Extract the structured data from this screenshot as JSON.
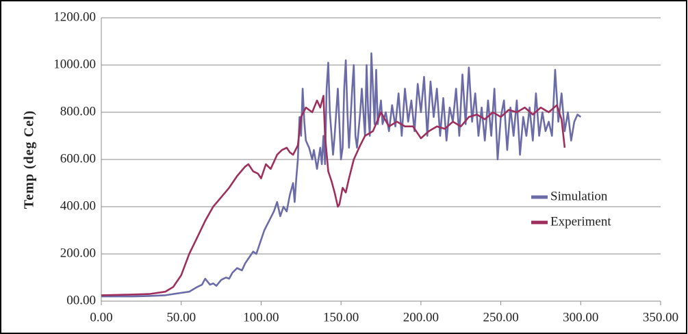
{
  "chart_data": {
    "type": "line",
    "ylabel": "Temp (deg Cel)",
    "xlim": [
      0,
      350
    ],
    "ylim": [
      0,
      1200
    ],
    "xticks": [
      {
        "value": 0,
        "label": "0.00"
      },
      {
        "value": 50,
        "label": "50.00"
      },
      {
        "value": 100,
        "label": "100.00"
      },
      {
        "value": 150,
        "label": "150.00"
      },
      {
        "value": 200,
        "label": "200.00"
      },
      {
        "value": 250,
        "label": "250.00"
      },
      {
        "value": 300,
        "label": "300.00"
      },
      {
        "value": 350,
        "label": "350.00"
      }
    ],
    "yticks": [
      {
        "value": 0,
        "label": "00.00"
      },
      {
        "value": 200,
        "label": "200.00"
      },
      {
        "value": 400,
        "label": "400.00"
      },
      {
        "value": 600,
        "label": "600.00"
      },
      {
        "value": 800,
        "label": "800.00"
      },
      {
        "value": 1000,
        "label": "1000.00"
      },
      {
        "value": 1200,
        "label": "1200.00"
      }
    ],
    "grid": true,
    "legend": "right",
    "series": [
      {
        "name": "Simulation",
        "color": "#6b6ba8",
        "x": [
          0,
          10,
          20,
          30,
          40,
          45,
          50,
          55,
          60,
          63,
          65,
          68,
          70,
          72,
          75,
          78,
          80,
          82,
          85,
          88,
          90,
          92,
          95,
          97,
          100,
          102,
          105,
          108,
          110,
          112,
          114,
          116,
          118,
          120,
          121,
          122,
          123,
          124,
          125,
          126,
          127,
          128,
          130,
          132,
          133,
          135,
          137,
          138,
          139,
          140,
          141,
          142,
          143,
          145,
          146,
          148,
          150,
          151,
          152,
          153,
          154,
          155,
          157,
          158,
          159,
          160,
          162,
          163,
          165,
          166,
          167,
          168,
          169,
          170,
          171,
          172,
          173,
          175,
          176,
          178,
          180,
          182,
          184,
          186,
          188,
          190,
          192,
          194,
          196,
          198,
          200,
          202,
          204,
          206,
          208,
          210,
          212,
          214,
          216,
          218,
          220,
          222,
          224,
          226,
          228,
          230,
          232,
          234,
          236,
          238,
          240,
          242,
          244,
          246,
          248,
          250,
          252,
          254,
          256,
          258,
          260,
          262,
          264,
          266,
          268,
          270,
          272,
          274,
          276,
          278,
          280,
          282,
          284,
          286,
          288,
          290,
          292,
          294,
          296,
          298,
          300
        ],
        "values": [
          20,
          20,
          20,
          22,
          25,
          30,
          35,
          40,
          60,
          70,
          95,
          70,
          75,
          65,
          90,
          100,
          95,
          120,
          140,
          130,
          160,
          180,
          210,
          200,
          260,
          300,
          340,
          380,
          420,
          360,
          400,
          380,
          450,
          500,
          420,
          520,
          600,
          780,
          700,
          900,
          760,
          680,
          650,
          600,
          640,
          560,
          650,
          580,
          700,
          580,
          900,
          1010,
          800,
          620,
          700,
          900,
          600,
          650,
          900,
          1020,
          800,
          650,
          900,
          1000,
          700,
          650,
          800,
          900,
          700,
          1000,
          800,
          700,
          1050,
          900,
          750,
          980,
          750,
          850,
          750,
          800,
          720,
          830,
          740,
          880,
          700,
          900,
          760,
          850,
          720,
          920,
          800,
          950,
          700,
          930,
          780,
          900,
          700,
          860,
          680,
          820,
          760,
          900,
          700,
          960,
          750,
          990,
          760,
          880,
          700,
          820,
          680,
          850,
          700,
          900,
          600,
          780,
          850,
          640,
          820,
          700,
          850,
          620,
          780,
          700,
          820,
          680,
          880,
          700,
          800,
          720,
          760,
          700,
          980,
          760,
          880,
          720,
          800,
          680,
          760,
          790,
          780
        ]
      },
      {
        "name": "Experiment",
        "color": "#9e2f5d",
        "x": [
          0,
          20,
          30,
          40,
          45,
          50,
          55,
          60,
          65,
          70,
          75,
          80,
          85,
          90,
          92,
          95,
          98,
          100,
          103,
          106,
          110,
          113,
          116,
          118,
          120,
          123,
          125,
          128,
          132,
          135,
          137,
          139,
          140,
          142,
          144,
          146,
          148,
          149,
          151,
          153,
          155,
          158,
          162,
          165,
          170,
          175,
          180,
          185,
          190,
          195,
          200,
          205,
          210,
          215,
          220,
          225,
          230,
          235,
          240,
          245,
          250,
          255,
          260,
          265,
          270,
          275,
          280,
          285,
          288,
          290
        ],
        "values": [
          25,
          28,
          30,
          40,
          60,
          110,
          200,
          270,
          340,
          400,
          440,
          480,
          530,
          570,
          580,
          550,
          540,
          520,
          580,
          560,
          620,
          640,
          650,
          630,
          620,
          660,
          780,
          820,
          800,
          850,
          820,
          870,
          700,
          550,
          510,
          460,
          400,
          410,
          480,
          460,
          520,
          600,
          660,
          700,
          720,
          800,
          740,
          760,
          740,
          740,
          690,
          720,
          740,
          730,
          760,
          740,
          780,
          790,
          770,
          800,
          780,
          810,
          800,
          820,
          790,
          820,
          800,
          830,
          770,
          650
        ]
      }
    ]
  }
}
